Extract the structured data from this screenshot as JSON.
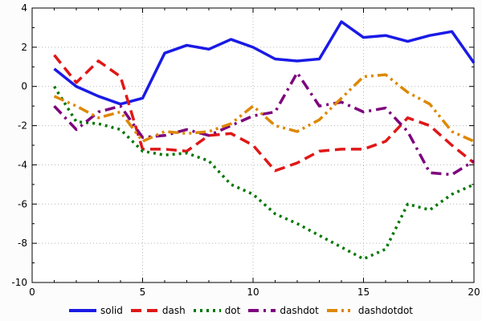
{
  "chart_data": {
    "type": "line",
    "title": "",
    "xlabel": "",
    "ylabel": "",
    "xlim": [
      0,
      20
    ],
    "ylim": [
      -10,
      4
    ],
    "x_ticks": [
      0,
      5,
      10,
      15,
      20
    ],
    "y_ticks": [
      -10,
      -8,
      -6,
      -4,
      -2,
      0,
      2,
      4
    ],
    "grid": "dotted",
    "legend_position": "bottom-center",
    "x": [
      1,
      2,
      3,
      4,
      5,
      6,
      7,
      8,
      9,
      10,
      11,
      12,
      13,
      14,
      15,
      16,
      17,
      18,
      19,
      20
    ],
    "series": [
      {
        "name": "solid",
        "style": "solid",
        "color": "#1a1ae6",
        "values": [
          0.9,
          0.0,
          -0.5,
          -0.9,
          -0.6,
          1.7,
          2.1,
          1.9,
          2.4,
          2.0,
          1.4,
          1.3,
          1.4,
          3.3,
          2.5,
          2.6,
          2.3,
          2.6,
          2.8,
          1.2
        ]
      },
      {
        "name": "dash",
        "style": "dash",
        "color": "#e01717",
        "values": [
          1.6,
          0.2,
          1.3,
          0.5,
          -3.2,
          -3.2,
          -3.3,
          -2.5,
          -2.4,
          -3.0,
          -4.3,
          -3.9,
          -3.3,
          -3.2,
          -3.2,
          -2.8,
          -1.6,
          -2.0,
          -3.0,
          -3.9
        ]
      },
      {
        "name": "dot",
        "style": "dot",
        "color": "#007700",
        "values": [
          0.0,
          -1.8,
          -1.9,
          -2.2,
          -3.3,
          -3.5,
          -3.4,
          -3.8,
          -5.0,
          -5.5,
          -6.5,
          -7.0,
          -7.6,
          -8.2,
          -8.8,
          -8.3,
          -6.0,
          -6.3,
          -5.5,
          -5.0
        ]
      },
      {
        "name": "dashdot",
        "style": "dashdot",
        "color": "#7d007d",
        "values": [
          -1.0,
          -2.2,
          -1.3,
          -1.0,
          -2.6,
          -2.5,
          -2.2,
          -2.5,
          -2.0,
          -1.5,
          -1.3,
          0.7,
          -1.0,
          -0.8,
          -1.3,
          -1.1,
          -2.3,
          -4.4,
          -4.5,
          -3.8
        ]
      },
      {
        "name": "dashdotdot",
        "style": "dashdotdot",
        "color": "#dd8800",
        "values": [
          -0.5,
          -1.0,
          -1.6,
          -1.3,
          -2.8,
          -2.3,
          -2.4,
          -2.3,
          -1.9,
          -1.0,
          -2.0,
          -2.3,
          -1.7,
          -0.6,
          0.5,
          0.6,
          -0.3,
          -0.9,
          -2.3,
          -2.8
        ]
      }
    ]
  },
  "colors": {
    "axis": "#000000",
    "grid": "#b8b8b8",
    "plot_bg": "#ffffff",
    "tick_label": "#000000"
  }
}
